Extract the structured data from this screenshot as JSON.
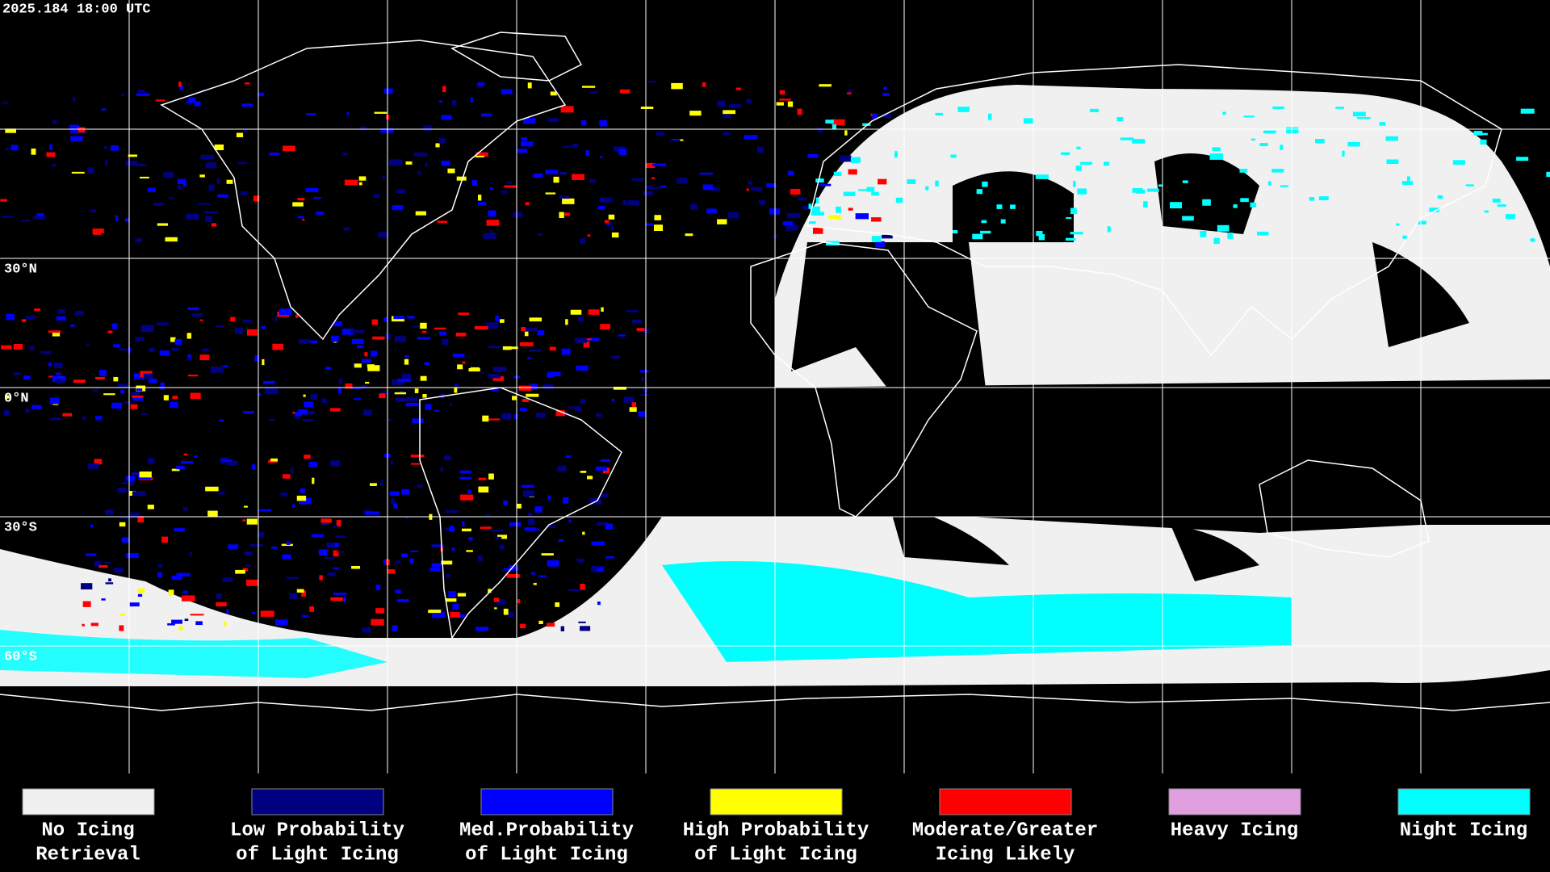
{
  "header": {
    "timestamp": "2025.184 18:00 UTC"
  },
  "latitude_labels": [
    "30°N",
    "0°N",
    "30°S",
    "60°S"
  ],
  "legend": [
    {
      "lines": [
        "No Icing",
        "Retrieval"
      ],
      "color": "#f0f0f0"
    },
    {
      "lines": [
        "Low Probability",
        "of Light Icing"
      ],
      "color": "#000080"
    },
    {
      "lines": [
        "Med.Probability",
        "of Light Icing"
      ],
      "color": "#0000ff"
    },
    {
      "lines": [
        "High Probability",
        "of Light Icing"
      ],
      "color": "#ffff00"
    },
    {
      "lines": [
        "Moderate/Greater",
        "Icing Likely"
      ],
      "color": "#ff0000"
    },
    {
      "lines": [
        "Heavy Icing"
      ],
      "color": "#e0a0e0"
    },
    {
      "lines": [
        "Night Icing"
      ],
      "color": "#00ffff"
    }
  ]
}
